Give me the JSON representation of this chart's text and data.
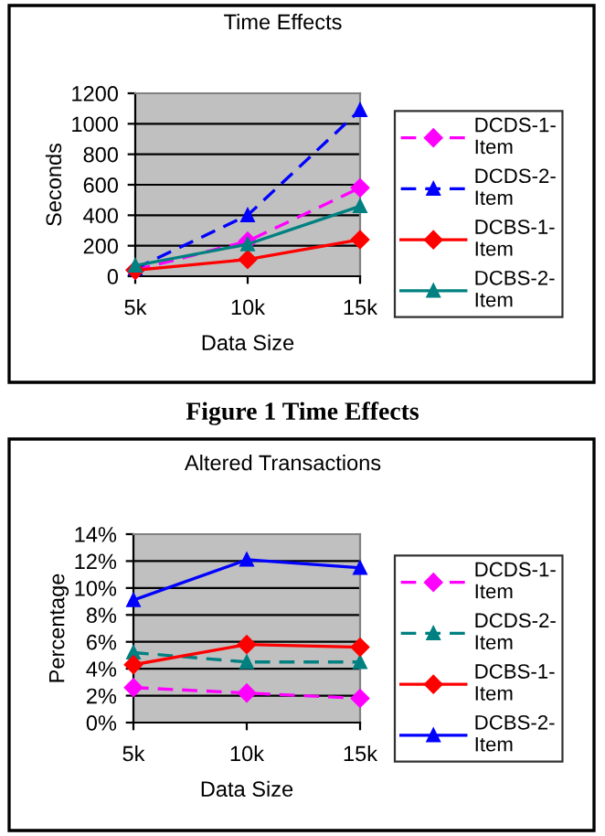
{
  "chart_data": [
    {
      "type": "line",
      "title": "Time Effects",
      "xlabel": "Data Size",
      "ylabel": "Seconds",
      "categories": [
        "5k",
        "10k",
        "15k"
      ],
      "series": [
        {
          "name": "DCDS-1-Item",
          "color": "#ff00ff",
          "marker": "diamond",
          "line_style": "dashed",
          "values": [
            40,
            230,
            580
          ]
        },
        {
          "name": "DCDS-2-Item",
          "color": "#0000ff",
          "marker": "triangle",
          "line_style": "dashed",
          "values": [
            50,
            400,
            1090
          ]
        },
        {
          "name": "DCBS-1-Item",
          "color": "#ff0000",
          "marker": "diamond",
          "line_style": "solid",
          "values": [
            40,
            110,
            240
          ]
        },
        {
          "name": "DCBS-2-Item",
          "color": "#008080",
          "marker": "triangle",
          "line_style": "solid",
          "values": [
            70,
            210,
            460
          ]
        }
      ],
      "ylim": [
        0,
        1200
      ],
      "yticks": [
        0,
        200,
        400,
        600,
        800,
        1000,
        1200
      ],
      "grid": "y",
      "legend": "right",
      "annotations": [
        "Figure 1 Time Effects"
      ]
    },
    {
      "type": "line",
      "title": "Altered Transactions",
      "xlabel": "Data Size",
      "ylabel": "Percentage",
      "categories": [
        "5k",
        "10k",
        "15k"
      ],
      "series": [
        {
          "name": "DCDS-1-Item",
          "color": "#ff00ff",
          "marker": "diamond",
          "line_style": "dashed",
          "values": [
            2.6,
            2.2,
            1.8
          ]
        },
        {
          "name": "DCDS-2-Item",
          "color": "#008080",
          "marker": "triangle",
          "line_style": "dashed",
          "values": [
            5.2,
            4.5,
            4.5
          ]
        },
        {
          "name": "DCBS-1-Item",
          "color": "#ff0000",
          "marker": "diamond",
          "line_style": "solid",
          "values": [
            4.3,
            5.8,
            5.6
          ]
        },
        {
          "name": "DCBS-2-Item",
          "color": "#0000ff",
          "marker": "triangle",
          "line_style": "solid",
          "values": [
            9.1,
            12.1,
            11.5
          ]
        }
      ],
      "ylim": [
        0,
        14
      ],
      "yticks": [
        {
          "value": 0,
          "label": "0%"
        },
        {
          "value": 2,
          "label": "2%"
        },
        {
          "value": 4,
          "label": "4%"
        },
        {
          "value": 6,
          "label": "6%"
        },
        {
          "value": 8,
          "label": "8%"
        },
        {
          "value": 10,
          "label": "10%"
        },
        {
          "value": 12,
          "label": "12%"
        },
        {
          "value": 14,
          "label": "14%"
        }
      ],
      "grid": "y",
      "legend": "right"
    }
  ]
}
